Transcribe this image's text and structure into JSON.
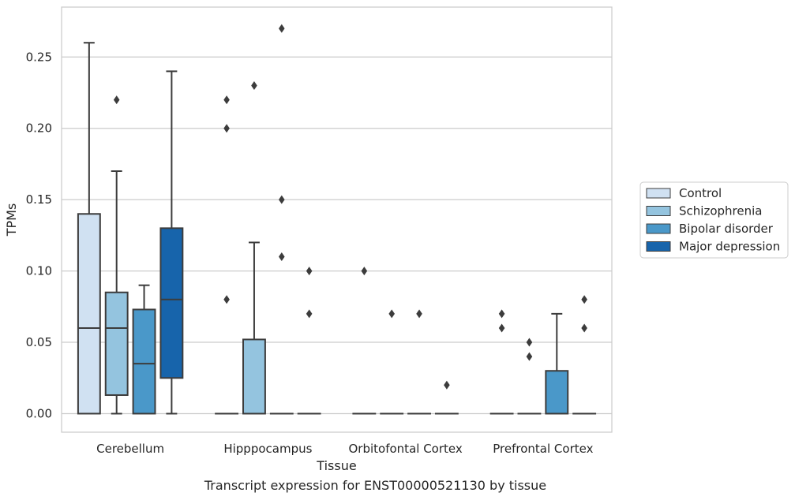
{
  "chart_data": {
    "type": "box",
    "caption": "Transcript expression for ENST00000521130 by tissue",
    "xlabel": "Tissue",
    "ylabel": "TPMs",
    "ylim": [
      -0.013,
      0.285
    ],
    "yticks": [
      0.0,
      0.05,
      0.1,
      0.15,
      0.2,
      0.25
    ],
    "ytick_labels": [
      "0.00",
      "0.05",
      "0.10",
      "0.15",
      "0.20",
      "0.25"
    ],
    "categories": [
      "Cerebellum",
      "Hipppocampus",
      "Orbitofontal Cortex",
      "Prefrontal Cortex"
    ],
    "grid": "horizontal",
    "legend_position": "right",
    "series": [
      {
        "name": "Control",
        "color": "#d0e1f2",
        "boxes": [
          {
            "min": 0.0,
            "q1": 0.0,
            "median": 0.06,
            "q3": 0.14,
            "max": 0.26,
            "outliers": []
          },
          {
            "min": 0.0,
            "q1": 0.0,
            "median": 0.0,
            "q3": 0.0,
            "max": 0.0,
            "outliers": [
              0.08,
              0.2,
              0.22
            ]
          },
          {
            "min": 0.0,
            "q1": 0.0,
            "median": 0.0,
            "q3": 0.0,
            "max": 0.0,
            "outliers": [
              0.1
            ]
          },
          {
            "min": 0.0,
            "q1": 0.0,
            "median": 0.0,
            "q3": 0.0,
            "max": 0.0,
            "outliers": [
              0.06,
              0.07
            ]
          }
        ]
      },
      {
        "name": "Schizophrenia",
        "color": "#94c4df",
        "boxes": [
          {
            "min": 0.0,
            "q1": 0.013,
            "median": 0.06,
            "q3": 0.085,
            "max": 0.17,
            "outliers": [
              0.22
            ]
          },
          {
            "min": 0.0,
            "q1": 0.0,
            "median": 0.0,
            "q3": 0.052,
            "max": 0.12,
            "outliers": [
              0.23
            ]
          },
          {
            "min": 0.0,
            "q1": 0.0,
            "median": 0.0,
            "q3": 0.0,
            "max": 0.0,
            "outliers": [
              0.07
            ]
          },
          {
            "min": 0.0,
            "q1": 0.0,
            "median": 0.0,
            "q3": 0.0,
            "max": 0.0,
            "outliers": [
              0.04,
              0.05
            ]
          }
        ]
      },
      {
        "name": "Bipolar disorder",
        "color": "#4a98c9",
        "boxes": [
          {
            "min": 0.0,
            "q1": 0.0,
            "median": 0.035,
            "q3": 0.073,
            "max": 0.09,
            "outliers": []
          },
          {
            "min": 0.0,
            "q1": 0.0,
            "median": 0.0,
            "q3": 0.0,
            "max": 0.0,
            "outliers": [
              0.11,
              0.15,
              0.27
            ]
          },
          {
            "min": 0.0,
            "q1": 0.0,
            "median": 0.0,
            "q3": 0.0,
            "max": 0.0,
            "outliers": [
              0.07
            ]
          },
          {
            "min": 0.0,
            "q1": 0.0,
            "median": 0.0,
            "q3": 0.03,
            "max": 0.07,
            "outliers": []
          }
        ]
      },
      {
        "name": "Major depression",
        "color": "#1764ab",
        "boxes": [
          {
            "min": 0.0,
            "q1": 0.025,
            "median": 0.08,
            "q3": 0.13,
            "max": 0.24,
            "outliers": []
          },
          {
            "min": 0.0,
            "q1": 0.0,
            "median": 0.0,
            "q3": 0.0,
            "max": 0.0,
            "outliers": [
              0.07,
              0.1
            ]
          },
          {
            "min": 0.0,
            "q1": 0.0,
            "median": 0.0,
            "q3": 0.0,
            "max": 0.0,
            "outliers": [
              0.02
            ]
          },
          {
            "min": 0.0,
            "q1": 0.0,
            "median": 0.0,
            "q3": 0.0,
            "max": 0.0,
            "outliers": [
              0.06,
              0.08
            ]
          }
        ]
      }
    ]
  }
}
